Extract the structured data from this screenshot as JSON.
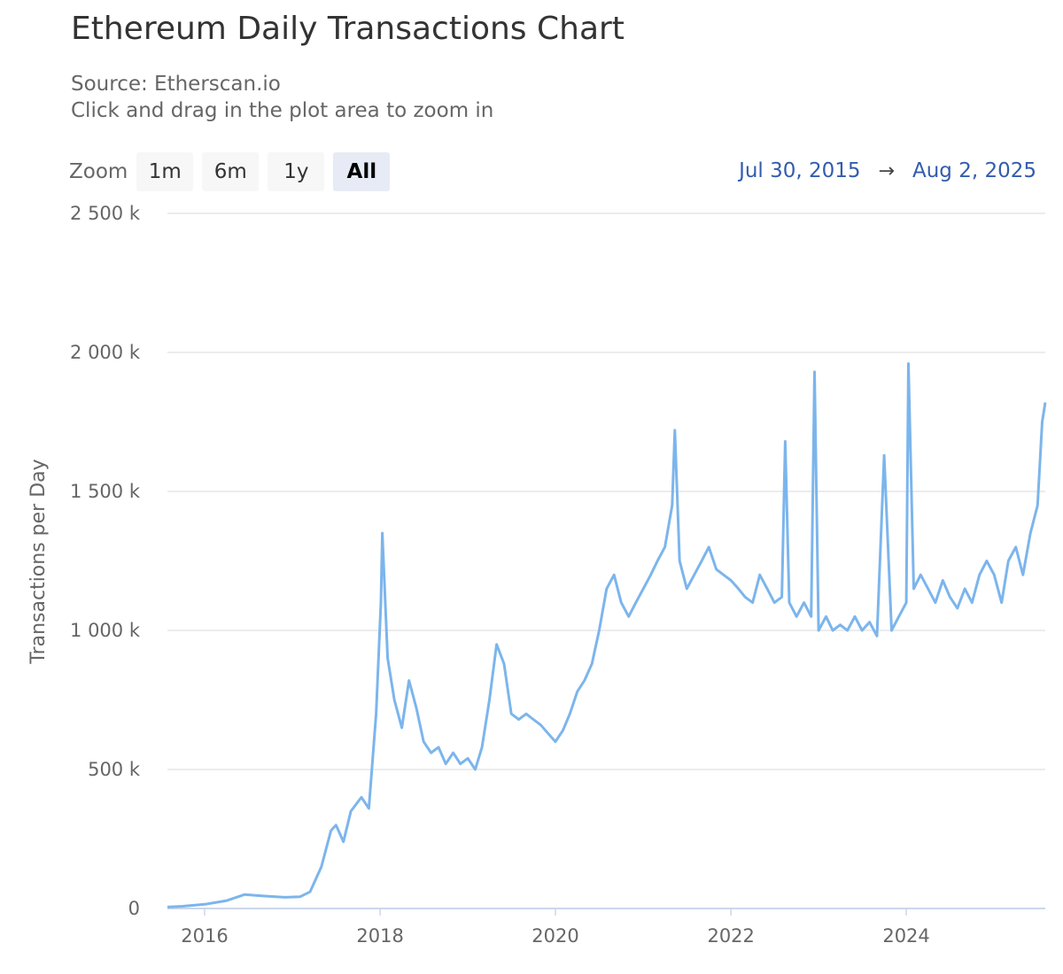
{
  "header": {
    "title": "Ethereum Daily Transactions Chart",
    "source": "Source: Etherscan.io",
    "hint": "Click and drag in the plot area to zoom in"
  },
  "zoom": {
    "label": "Zoom",
    "buttons": [
      {
        "label": "1m",
        "active": false
      },
      {
        "label": "6m",
        "active": false
      },
      {
        "label": "1y",
        "active": false
      },
      {
        "label": "All",
        "active": true
      }
    ]
  },
  "range": {
    "from": "Jul 30, 2015",
    "arrow": "→",
    "to": "Aug 2, 2025"
  },
  "colors": {
    "line": "#7cb5ec",
    "grid": "#e6e6e6",
    "axis": "#ccd6eb",
    "range_text": "#335cad"
  },
  "chart_data": {
    "type": "line",
    "title": "Ethereum Daily Transactions Chart",
    "subtitle": "Source: Etherscan.io",
    "xlabel": "",
    "ylabel": "Transactions per Day",
    "ylim": [
      0,
      2500000
    ],
    "xlim": [
      "2015-07-30",
      "2025-08-02"
    ],
    "y_ticks": [
      0,
      500000,
      1000000,
      1500000,
      2000000,
      2500000
    ],
    "y_tick_labels": [
      "0",
      "500 k",
      "1 000 k",
      "1 500 k",
      "2 000 k",
      "2 500 k"
    ],
    "x_ticks": [
      "2016-01-01",
      "2018-01-01",
      "2020-01-01",
      "2022-01-01",
      "2024-01-01"
    ],
    "x_tick_labels": [
      "2016",
      "2018",
      "2020",
      "2022",
      "2024"
    ],
    "grid": true,
    "legend": "none",
    "series": [
      {
        "x": [
          "2015-07-30",
          "2015-10-01",
          "2016-01-01",
          "2016-04-01",
          "2016-06-15",
          "2016-09-01",
          "2016-12-01",
          "2017-02-01",
          "2017-03-15",
          "2017-05-01",
          "2017-06-10",
          "2017-07-01",
          "2017-08-01",
          "2017-09-01",
          "2017-10-15",
          "2017-11-15",
          "2017-12-15",
          "2018-01-04",
          "2018-01-10",
          "2018-02-01",
          "2018-03-01",
          "2018-04-01",
          "2018-05-01",
          "2018-06-01",
          "2018-07-01",
          "2018-08-01",
          "2018-09-01",
          "2018-10-01",
          "2018-11-01",
          "2018-12-01",
          "2019-01-01",
          "2019-02-01",
          "2019-03-01",
          "2019-04-01",
          "2019-05-01",
          "2019-06-01",
          "2019-07-01",
          "2019-08-01",
          "2019-09-01",
          "2019-10-01",
          "2019-11-01",
          "2019-12-01",
          "2020-01-01",
          "2020-02-01",
          "2020-03-01",
          "2020-04-01",
          "2020-05-01",
          "2020-06-01",
          "2020-07-01",
          "2020-08-01",
          "2020-09-01",
          "2020-10-01",
          "2020-11-01",
          "2020-12-01",
          "2021-01-01",
          "2021-02-01",
          "2021-03-01",
          "2021-04-01",
          "2021-05-01",
          "2021-05-12",
          "2021-06-01",
          "2021-07-01",
          "2021-08-01",
          "2021-09-01",
          "2021-10-01",
          "2021-11-01",
          "2021-12-01",
          "2022-01-01",
          "2022-02-01",
          "2022-03-01",
          "2022-04-01",
          "2022-05-01",
          "2022-06-01",
          "2022-07-01",
          "2022-08-01",
          "2022-08-15",
          "2022-09-01",
          "2022-10-01",
          "2022-11-01",
          "2022-12-01",
          "2022-12-15",
          "2023-01-01",
          "2023-02-01",
          "2023-03-01",
          "2023-04-01",
          "2023-05-01",
          "2023-06-01",
          "2023-07-01",
          "2023-08-01",
          "2023-09-01",
          "2023-10-01",
          "2023-11-01",
          "2023-12-01",
          "2024-01-01",
          "2024-01-10",
          "2024-02-01",
          "2024-03-01",
          "2024-04-01",
          "2024-05-01",
          "2024-06-01",
          "2024-07-01",
          "2024-08-01",
          "2024-09-01",
          "2024-10-01",
          "2024-11-01",
          "2024-12-01",
          "2025-01-01",
          "2025-02-01",
          "2025-03-01",
          "2025-04-01",
          "2025-05-01",
          "2025-06-01",
          "2025-07-01",
          "2025-07-20",
          "2025-08-02"
        ],
        "y": [
          5000,
          8000,
          15000,
          28000,
          50000,
          45000,
          40000,
          42000,
          60000,
          150000,
          280000,
          300000,
          240000,
          350000,
          400000,
          360000,
          700000,
          1100000,
          1350000,
          900000,
          750000,
          650000,
          820000,
          720000,
          600000,
          560000,
          580000,
          520000,
          560000,
          520000,
          540000,
          500000,
          580000,
          750000,
          950000,
          880000,
          700000,
          680000,
          700000,
          680000,
          660000,
          630000,
          600000,
          640000,
          700000,
          780000,
          820000,
          880000,
          1000000,
          1150000,
          1200000,
          1100000,
          1050000,
          1100000,
          1150000,
          1200000,
          1250000,
          1300000,
          1450000,
          1720000,
          1250000,
          1150000,
          1200000,
          1250000,
          1300000,
          1220000,
          1200000,
          1180000,
          1150000,
          1120000,
          1100000,
          1200000,
          1150000,
          1100000,
          1120000,
          1680000,
          1100000,
          1050000,
          1100000,
          1050000,
          1930000,
          1000000,
          1050000,
          1000000,
          1020000,
          1000000,
          1050000,
          1000000,
          1030000,
          980000,
          1630000,
          1000000,
          1050000,
          1100000,
          1960000,
          1150000,
          1200000,
          1150000,
          1100000,
          1180000,
          1120000,
          1080000,
          1150000,
          1100000,
          1200000,
          1250000,
          1200000,
          1100000,
          1250000,
          1300000,
          1200000,
          1350000,
          1450000,
          1750000,
          1820000
        ]
      }
    ]
  }
}
